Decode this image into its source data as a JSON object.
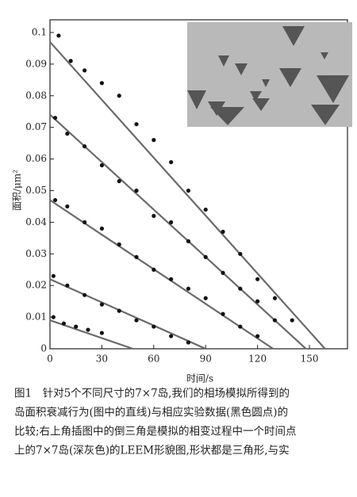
{
  "chart_data": {
    "type": "scatter",
    "x_label": "时间/s",
    "y_label": "面积/μm²",
    "xlim": [
      0,
      172
    ],
    "ylim": [
      0,
      0.104
    ],
    "xticks": [
      0,
      30,
      60,
      90,
      120,
      150
    ],
    "yticks": [
      0,
      0.01,
      0.02,
      0.03,
      0.04,
      0.05,
      0.06,
      0.07,
      0.08,
      0.09,
      0.1
    ],
    "series": [
      {
        "type": "line",
        "color": "#6a6a6a",
        "x": [
          0,
          159
        ],
        "values": [
          0.097,
          0
        ]
      },
      {
        "type": "line",
        "color": "#6a6a6a",
        "x": [
          0,
          148
        ],
        "values": [
          0.074,
          0
        ]
      },
      {
        "type": "line",
        "color": "#6a6a6a",
        "x": [
          0,
          129
        ],
        "values": [
          0.047,
          0
        ]
      },
      {
        "type": "line",
        "color": "#6a6a6a",
        "x": [
          0,
          90
        ],
        "values": [
          0.022,
          0
        ]
      },
      {
        "type": "line",
        "color": "#6a6a6a",
        "x": [
          0,
          48
        ],
        "values": [
          0.009,
          0
        ]
      },
      {
        "type": "scatter",
        "color": "#111111",
        "x": [
          5,
          12,
          20,
          30,
          40,
          50,
          60,
          70,
          80,
          90,
          100,
          110,
          120,
          130,
          140
        ],
        "values": [
          0.099,
          0.091,
          0.088,
          0.084,
          0.08,
          0.071,
          0.066,
          0.059,
          0.05,
          0.044,
          0.037,
          0.03,
          0.022,
          0.016,
          0.009
        ]
      },
      {
        "type": "scatter",
        "color": "#111111",
        "x": [
          3,
          10,
          20,
          30,
          40,
          50,
          60,
          70,
          80,
          90,
          100,
          110,
          120,
          130
        ],
        "values": [
          0.073,
          0.068,
          0.064,
          0.058,
          0.053,
          0.05,
          0.042,
          0.04,
          0.034,
          0.029,
          0.024,
          0.019,
          0.015,
          0.009
        ]
      },
      {
        "type": "scatter",
        "color": "#111111",
        "x": [
          3,
          10,
          20,
          30,
          40,
          50,
          60,
          70,
          80,
          90,
          100,
          110,
          120
        ],
        "values": [
          0.047,
          0.045,
          0.04,
          0.038,
          0.033,
          0.029,
          0.025,
          0.022,
          0.019,
          0.016,
          0.011,
          0.007,
          0.004
        ]
      },
      {
        "type": "scatter",
        "color": "#111111",
        "x": [
          2,
          10,
          20,
          30,
          40,
          50,
          60,
          70,
          80
        ],
        "values": [
          0.023,
          0.02,
          0.017,
          0.014,
          0.012,
          0.009,
          0.007,
          0.004,
          0.002
        ]
      },
      {
        "type": "scatter",
        "color": "#111111",
        "x": [
          2,
          8,
          15,
          22,
          30
        ],
        "values": [
          0.01,
          0.008,
          0.007,
          0.006,
          0.005
        ]
      }
    ]
  },
  "caption": [
    "图1　针对5个不同尺寸的7×7岛,我们的相场模拟所得到的",
    "岛面积衰减行为(图中的直线)与相应实验数据(黑色圆点)的",
    "比较;右上角插图中的倒三角是模拟的相变过程中一个时间点",
    "上的7×7岛(深灰色)的LEEM形貌图,形状都是三角形,与实"
  ]
}
